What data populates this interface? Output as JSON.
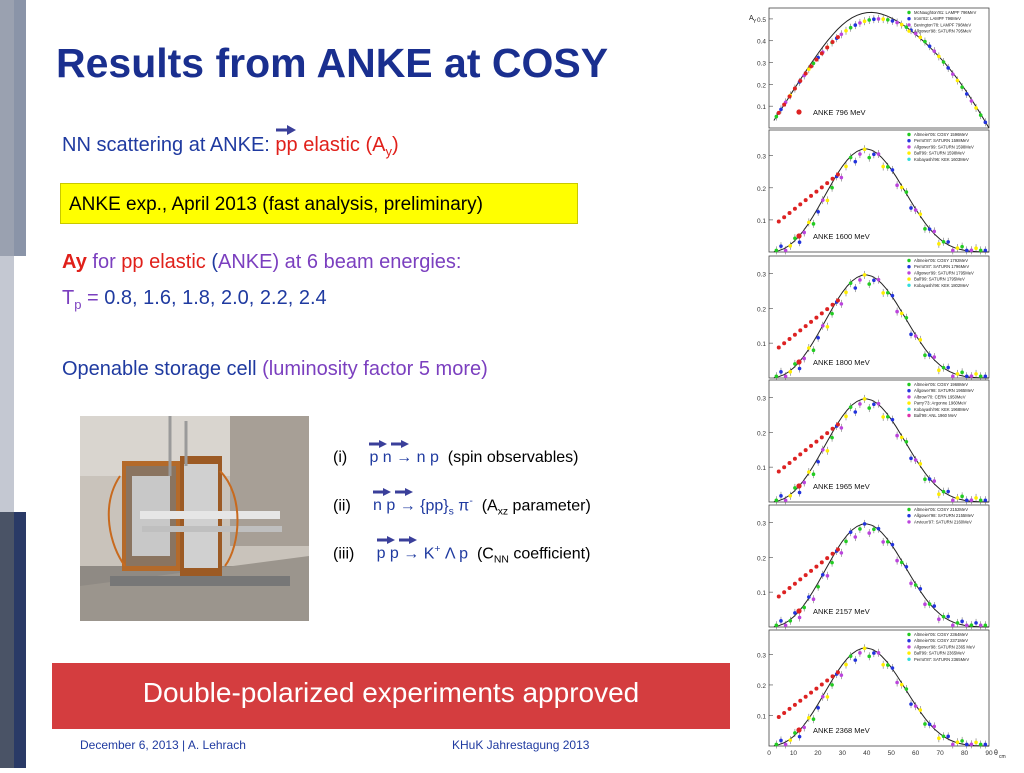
{
  "title": "Results from ANKE at COSY",
  "nn_line": {
    "prefix": "NN scattering at ANKE: ",
    "pp": "pp",
    "elastic": " elastic (A",
    "sub": "y",
    "close": ")"
  },
  "yellow_box": "ANKE exp., April 2013 (fast analysis, preliminary)",
  "ay_line": {
    "ay": "Ay",
    "for": " for ",
    "pp_elastic": "pp elastic",
    "open": " (",
    "anke": "ANKE) at 6 beam energies:"
  },
  "tp_line": {
    "t": "T",
    "sub": "p",
    "eq": " = ",
    "values": "0.8, 1.6, 1.8, 2.0, 2.2, 2.4"
  },
  "storage": {
    "main": "Openable storage cell ",
    "paren": "(luminosity factor 5 more)"
  },
  "reactions": [
    {
      "num": "(i)",
      "r1": "p n",
      "arrow": "→",
      "r2": "n p",
      "tail": "(spin observables)"
    },
    {
      "num": "(ii)",
      "r1": "n p",
      "arrow": "→",
      "r2": "{pp}",
      "r2sub": "s",
      "pi": "π",
      "pisup": "-",
      "tail": "(A",
      "tailsub": "xz",
      "tail2": " parameter)"
    },
    {
      "num": "(iii)",
      "r1": "p p",
      "arrow": "→",
      "r2": "K",
      "ksup": "+",
      "lam": "Λ p",
      "tail": "(C",
      "tailsub": "NN",
      "tail2": " coefficient)"
    }
  ],
  "banner": "Double-polarized experiments approved",
  "footer": {
    "left": "December 6, 2013 | A. Lehrach",
    "right": "KHuK Jahrestagung 2013"
  },
  "colors": {
    "title": "#1a2f8f",
    "text_blue": "#1f3aa0",
    "red": "#e0201a",
    "banner": "#d43d3f",
    "box": "#ffff00"
  },
  "chart_data": [
    {
      "type": "scatter",
      "label": "ANKE 796 MeV",
      "ylabel": "A",
      "ylabel_sub": "Y",
      "yticks": [
        "0.1",
        "0.2",
        "0.3",
        "0.4",
        "0.5"
      ],
      "legend": [
        "McNaughton'81: LAMPF 796MeV",
        "Irom'82: LAMPF 796MeV",
        "Bevington'78: LAMPF 796MeV",
        "Allgower'98: SATURN 795MeV"
      ]
    },
    {
      "type": "scatter",
      "label": "ANKE 1600 MeV",
      "yticks": [
        "0.1",
        "0.2",
        "0.3"
      ],
      "legend": [
        "Altmeier'05: COSY 1596MeV",
        "Perrot'87: SATURN 1598MeV",
        "Allgower'99: SATURN 1598MeV",
        "Ball'99: SATURN 1598MeV",
        "Kobayashi'96: KEK 1603MeV"
      ]
    },
    {
      "type": "scatter",
      "label": "ANKE 1800 MeV",
      "yticks": [
        "0.1",
        "0.2",
        "0.3"
      ],
      "legend": [
        "Altmeier'05: COSY 1792MeV",
        "Perrot'87: SATURN 1796MeV",
        "Allgower'99: SATURN 1795MeV",
        "Ball'99: SATURN 1795MeV",
        "Kobayashi'96: KEK 1802MeV"
      ]
    },
    {
      "type": "scatter",
      "label": "ANKE 1965 MeV",
      "yticks": [
        "0.1",
        "0.2",
        "0.3"
      ],
      "legend": [
        "Altmeier'05: COSY 1968MeV",
        "Allgower'98: SATURN 1965MeV",
        "Albrow'70: CERN 1950MeV",
        "Parry'73: Argonne 1960MeV",
        "Kobayashi'96: KEK 1968MeV",
        "Ball'99: ANL 1960 MeV"
      ]
    },
    {
      "type": "scatter",
      "label": "ANKE 2157 MeV",
      "yticks": [
        "0.1",
        "0.2",
        "0.3"
      ],
      "legend": [
        "Altmeier'05: COSY 2152MeV",
        "Allgower'98: SATURN 2155MeV",
        "Arvieux'97: SATURN 2160MeV"
      ]
    },
    {
      "type": "scatter",
      "label": "ANKE 2368 MeV",
      "yticks": [
        "0.1",
        "0.2",
        "0.3"
      ],
      "xlabel": "θ",
      "xlabel_sub": "cm",
      "xticks": [
        "0",
        "10",
        "20",
        "30",
        "40",
        "50",
        "60",
        "70",
        "80",
        "90"
      ],
      "legend": [
        "Altmeier'05: COSY 2364MeV",
        "Altmeier'05: COSY 2371MeV",
        "Allgower'98: SATURN 2365 MeV",
        "Ball'99: SATURN 2365MeV",
        "Perrot'87: SATURN 2365MeV"
      ]
    }
  ]
}
